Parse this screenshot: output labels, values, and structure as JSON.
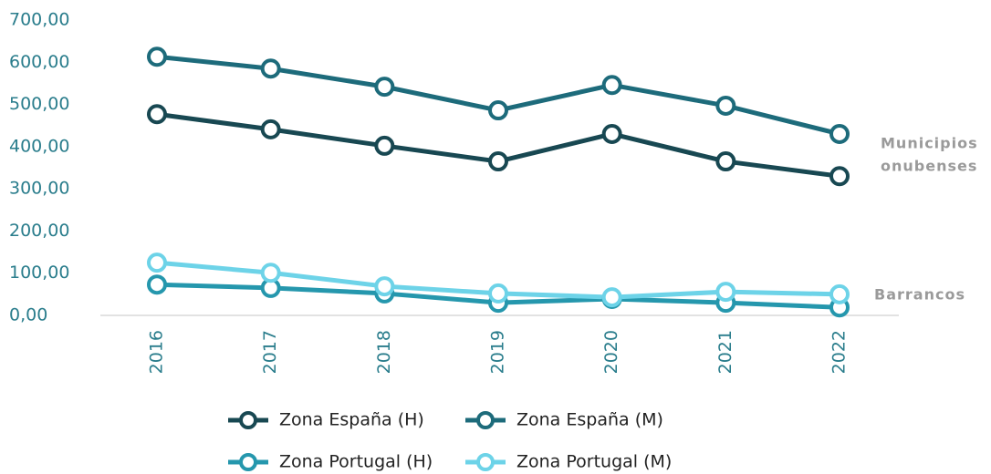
{
  "chart_data": {
    "type": "line",
    "categories": [
      "2016",
      "2017",
      "2018",
      "2019",
      "2020",
      "2021",
      "2022"
    ],
    "series": [
      {
        "name": "Zona España (H)",
        "color": "#184852",
        "values": [
          477,
          441,
          402,
          365,
          430,
          365,
          330
        ]
      },
      {
        "name": "Zona España (M)",
        "color": "#1d6b7b",
        "values": [
          613,
          585,
          542,
          486,
          546,
          497,
          430
        ]
      },
      {
        "name": "Zona Portugal (H)",
        "color": "#2597ad",
        "values": [
          73,
          65,
          52,
          30,
          39,
          30,
          19
        ]
      },
      {
        "name": "Zona Portugal (M)",
        "color": "#6dd3e8",
        "values": [
          125,
          101,
          69,
          52,
          43,
          56,
          50
        ]
      }
    ],
    "ylim": [
      0,
      700
    ],
    "yticks": [
      {
        "value": 0,
        "label": "0,00"
      },
      {
        "value": 100,
        "label": "100,00"
      },
      {
        "value": 200,
        "label": "200,00"
      },
      {
        "value": 300,
        "label": "300,00"
      },
      {
        "value": 400,
        "label": "400,00"
      },
      {
        "value": 500,
        "label": "500,00"
      },
      {
        "value": 600,
        "label": "600,00"
      },
      {
        "value": 700,
        "label": "700,00"
      }
    ],
    "annotations": [
      {
        "lines": [
          "Municipios",
          "onubenses"
        ]
      },
      {
        "lines": [
          "Barrancos"
        ]
      }
    ]
  }
}
